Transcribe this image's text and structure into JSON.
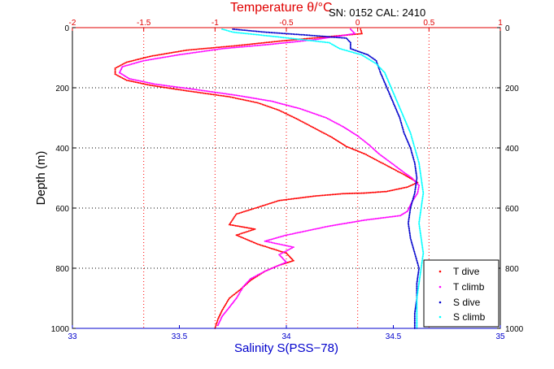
{
  "chart_data": {
    "type": "scatter",
    "top_label": "Temperature θ/°C",
    "annotation": "SN: 0152  CAL: 2410",
    "xlabel": "Salinity S(PSS−78)",
    "ylabel": "Depth (m)",
    "top_axis": {
      "lim": [
        -2,
        1
      ],
      "ticks": [
        "-2",
        "-1.5",
        "-1",
        "-0.5",
        "0",
        "0.5",
        "1"
      ]
    },
    "bottom_axis": {
      "lim": [
        33,
        35
      ],
      "ticks": [
        "33",
        "33.5",
        "34",
        "34.5",
        "35"
      ]
    },
    "y_axis": {
      "lim": [
        0,
        1000
      ],
      "reversed": true,
      "ticks": [
        "0",
        "200",
        "400",
        "600",
        "800",
        "1000"
      ]
    },
    "grid": true,
    "legend_position": "bottom-right",
    "colors": {
      "t_dive": "#ff0000",
      "t_climb": "#ff00ff",
      "s_dive": "#0000cc",
      "s_climb": "#00ffff",
      "axis": "#000000"
    },
    "series": [
      {
        "name": "T dive",
        "axis": "top",
        "points": [
          [
            0.02,
            5
          ],
          [
            0.03,
            20
          ],
          [
            -0.55,
            45
          ],
          [
            -0.85,
            60
          ],
          [
            -1.2,
            75
          ],
          [
            -1.45,
            95
          ],
          [
            -1.62,
            115
          ],
          [
            -1.7,
            135
          ],
          [
            -1.7,
            155
          ],
          [
            -1.62,
            175
          ],
          [
            -1.45,
            192
          ],
          [
            -1.2,
            210
          ],
          [
            -0.9,
            230
          ],
          [
            -0.7,
            250
          ],
          [
            -0.55,
            275
          ],
          [
            -0.42,
            305
          ],
          [
            -0.3,
            335
          ],
          [
            -0.18,
            365
          ],
          [
            -0.08,
            395
          ],
          [
            0.05,
            420
          ],
          [
            0.15,
            445
          ],
          [
            0.25,
            470
          ],
          [
            0.33,
            490
          ],
          [
            0.42,
            515
          ],
          [
            0.35,
            530
          ],
          [
            0.2,
            545
          ],
          [
            0.05,
            550
          ],
          [
            -0.1,
            552
          ],
          [
            -0.3,
            560
          ],
          [
            -0.55,
            575
          ],
          [
            -0.85,
            620
          ],
          [
            -0.9,
            655
          ],
          [
            -0.72,
            670
          ],
          [
            -0.85,
            690
          ],
          [
            -0.7,
            720
          ],
          [
            -0.5,
            750
          ],
          [
            -0.45,
            775
          ],
          [
            -0.55,
            790
          ],
          [
            -0.65,
            810
          ],
          [
            -0.75,
            840
          ],
          [
            -0.82,
            870
          ],
          [
            -0.9,
            900
          ],
          [
            -0.95,
            940
          ],
          [
            -0.98,
            970
          ],
          [
            -1.0,
            1000
          ]
        ]
      },
      {
        "name": "T climb",
        "axis": "top",
        "points": [
          [
            -0.05,
            5
          ],
          [
            -0.02,
            20
          ],
          [
            -0.3,
            40
          ],
          [
            -0.6,
            55
          ],
          [
            -0.95,
            70
          ],
          [
            -1.25,
            90
          ],
          [
            -1.5,
            110
          ],
          [
            -1.65,
            130
          ],
          [
            -1.67,
            150
          ],
          [
            -1.6,
            170
          ],
          [
            -1.42,
            188
          ],
          [
            -1.15,
            205
          ],
          [
            -0.85,
            225
          ],
          [
            -0.6,
            245
          ],
          [
            -0.4,
            270
          ],
          [
            -0.22,
            300
          ],
          [
            -0.1,
            330
          ],
          [
            0.0,
            360
          ],
          [
            0.08,
            390
          ],
          [
            0.15,
            420
          ],
          [
            0.25,
            455
          ],
          [
            0.32,
            480
          ],
          [
            0.38,
            500
          ],
          [
            0.43,
            525
          ],
          [
            0.42,
            550
          ],
          [
            0.38,
            580
          ],
          [
            0.35,
            610
          ],
          [
            0.3,
            625
          ],
          [
            0.05,
            640
          ],
          [
            -0.2,
            660
          ],
          [
            -0.5,
            690
          ],
          [
            -0.65,
            710
          ],
          [
            -0.45,
            730
          ],
          [
            -0.55,
            755
          ],
          [
            -0.5,
            780
          ],
          [
            -0.65,
            810
          ],
          [
            -0.75,
            835
          ],
          [
            -0.8,
            860
          ],
          [
            -0.85,
            900
          ],
          [
            -0.9,
            930
          ],
          [
            -0.95,
            960
          ],
          [
            -0.98,
            990
          ]
        ]
      },
      {
        "name": "S dive",
        "axis": "bottom",
        "points": [
          [
            33.75,
            5
          ],
          [
            33.9,
            15
          ],
          [
            34.1,
            25
          ],
          [
            34.28,
            35
          ],
          [
            34.3,
            50
          ],
          [
            34.3,
            70
          ],
          [
            34.38,
            90
          ],
          [
            34.42,
            110
          ],
          [
            34.44,
            150
          ],
          [
            34.47,
            200
          ],
          [
            34.5,
            250
          ],
          [
            34.53,
            300
          ],
          [
            34.55,
            350
          ],
          [
            34.58,
            400
          ],
          [
            34.6,
            450
          ],
          [
            34.61,
            500
          ],
          [
            34.6,
            550
          ],
          [
            34.58,
            600
          ],
          [
            34.57,
            650
          ],
          [
            34.58,
            700
          ],
          [
            34.6,
            750
          ],
          [
            34.62,
            800
          ],
          [
            34.61,
            850
          ],
          [
            34.61,
            900
          ],
          [
            34.6,
            950
          ],
          [
            34.6,
            1000
          ]
        ]
      },
      {
        "name": "S climb",
        "axis": "bottom",
        "points": [
          [
            33.7,
            5
          ],
          [
            33.75,
            15
          ],
          [
            33.95,
            30
          ],
          [
            34.2,
            50
          ],
          [
            34.25,
            70
          ],
          [
            34.35,
            90
          ],
          [
            34.42,
            120
          ],
          [
            34.46,
            150
          ],
          [
            34.49,
            200
          ],
          [
            34.52,
            250
          ],
          [
            34.55,
            300
          ],
          [
            34.58,
            350
          ],
          [
            34.6,
            400
          ],
          [
            34.62,
            450
          ],
          [
            34.63,
            500
          ],
          [
            34.64,
            550
          ],
          [
            34.63,
            600
          ],
          [
            34.62,
            650
          ],
          [
            34.63,
            700
          ],
          [
            34.64,
            750
          ],
          [
            34.63,
            800
          ],
          [
            34.62,
            850
          ],
          [
            34.61,
            900
          ],
          [
            34.61,
            950
          ],
          [
            34.61,
            1000
          ]
        ]
      }
    ]
  }
}
